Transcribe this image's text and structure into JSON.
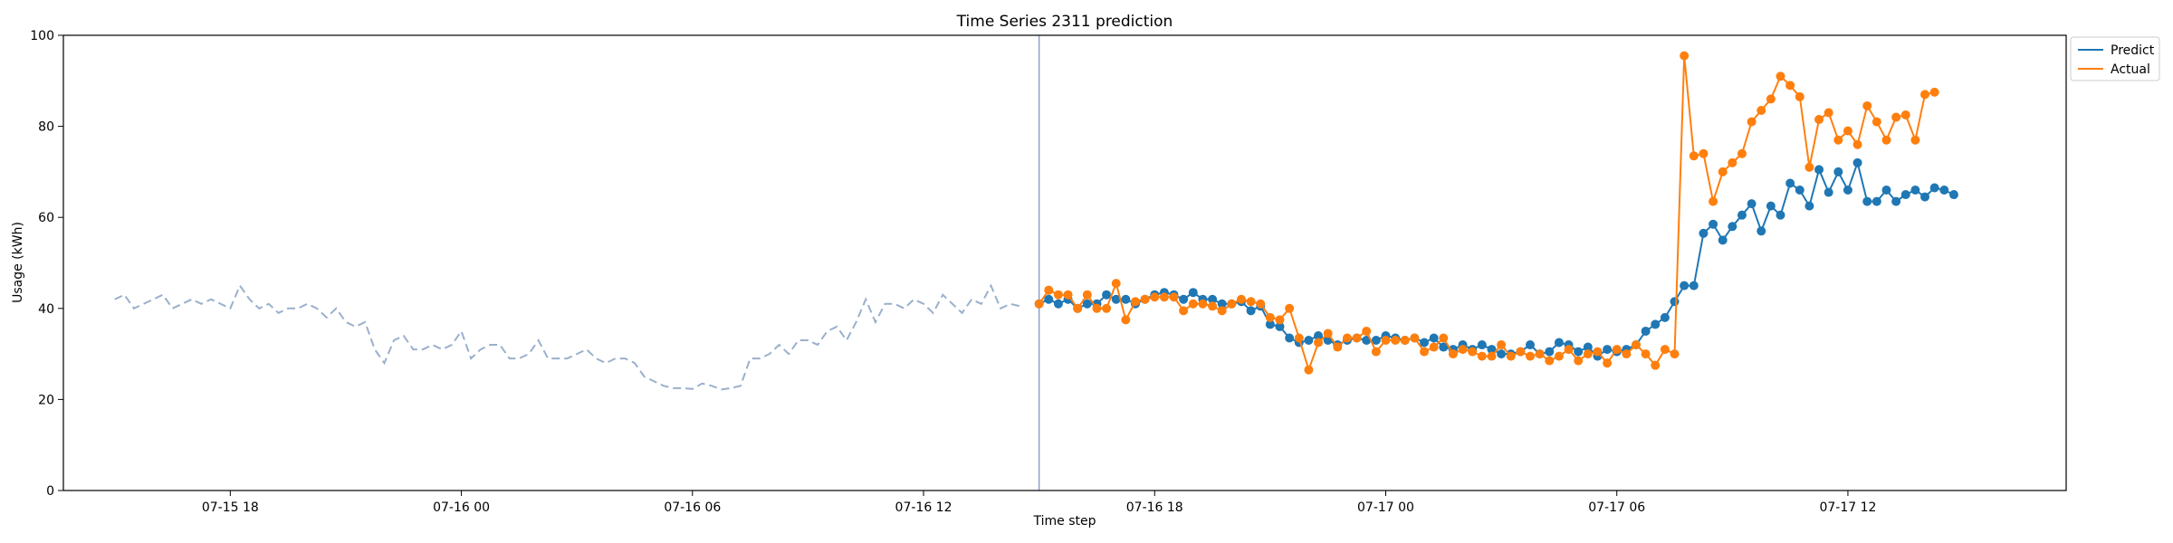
{
  "chart_data": {
    "type": "line",
    "title": "Time Series 2311 prediction",
    "xlabel": "Time step",
    "ylabel": "Usage (kWh)",
    "ylim": [
      0,
      100
    ],
    "yticks": [
      0,
      20,
      40,
      60,
      80,
      100
    ],
    "xlim": [
      "2024-07-15 13:40",
      "2024-07-17 17:40"
    ],
    "xticks": [
      {
        "time": "2024-07-15 18:00",
        "label": "07-15 18"
      },
      {
        "time": "2024-07-16 00:00",
        "label": "07-16 00"
      },
      {
        "time": "2024-07-16 06:00",
        "label": "07-16 06"
      },
      {
        "time": "2024-07-16 12:00",
        "label": "07-16 12"
      },
      {
        "time": "2024-07-16 18:00",
        "label": "07-16 18"
      },
      {
        "time": "2024-07-17 00:00",
        "label": "07-17 00"
      },
      {
        "time": "2024-07-17 06:00",
        "label": "07-17 06"
      },
      {
        "time": "2024-07-17 12:00",
        "label": "07-17 12"
      }
    ],
    "step_minutes": 15,
    "history_start": "2024-07-15 15:00",
    "forecast_start": "2024-07-16 15:00",
    "forecast_line_color": "#8da0cb",
    "grid": false,
    "legend_position": "top-right, outside plot",
    "history": {
      "color": "#9ab0cc",
      "style": "dashed",
      "values": [
        42,
        43,
        40,
        41,
        42,
        43,
        40,
        41,
        42,
        41,
        42,
        41,
        40,
        45,
        42,
        40,
        41,
        39,
        40,
        40,
        41,
        40,
        38,
        40,
        37,
        36,
        37,
        31,
        28,
        33,
        34,
        31,
        31,
        32,
        31,
        32,
        35,
        29,
        31,
        32,
        32,
        29,
        29,
        30,
        33,
        29,
        29,
        29,
        30,
        31,
        29,
        28,
        29,
        29,
        28,
        25,
        24,
        23,
        22.5,
        22.5,
        22.3,
        23.5,
        23,
        22.2,
        22.5,
        23,
        29,
        29,
        30,
        32,
        30,
        33,
        33,
        32,
        35,
        36,
        33,
        37,
        42,
        37,
        41,
        41,
        40,
        42,
        41,
        39,
        43,
        41,
        39,
        42,
        41,
        45,
        40,
        41,
        40.5
      ]
    },
    "series": [
      {
        "name": "Predict",
        "color": "#1f77b4",
        "values": [
          41,
          42,
          41,
          42,
          40,
          41,
          41,
          43,
          42,
          42,
          41,
          42,
          43,
          43.5,
          43,
          42,
          43.5,
          42,
          42,
          41,
          41,
          41.5,
          39.5,
          40.5,
          36.5,
          36,
          33.5,
          32.5,
          33,
          34,
          33,
          32,
          33,
          33.5,
          33,
          33,
          34,
          33.5,
          33,
          33.5,
          32.5,
          33.5,
          31.5,
          31,
          32,
          31,
          32,
          31,
          30,
          30,
          30.5,
          32,
          30,
          30.5,
          32.5,
          32,
          30.5,
          31.5,
          29.5,
          31,
          30.5,
          31,
          32,
          35,
          36.5,
          38,
          41.5,
          45,
          45,
          56.5,
          58.5,
          55,
          58,
          60.5,
          63,
          57,
          62.5,
          60.5,
          67.5,
          66,
          62.5,
          70.5,
          65.5,
          70,
          66,
          72,
          63.5,
          63.5,
          66,
          63.5,
          65,
          66,
          64.5,
          66.5,
          66,
          65
        ]
      },
      {
        "name": "Actual",
        "color": "#ff7f0e",
        "values": [
          41,
          44,
          43,
          43,
          40,
          43,
          40,
          40,
          45.5,
          37.5,
          41.5,
          42,
          42.5,
          42.5,
          42.5,
          39.5,
          41,
          41,
          40.5,
          39.5,
          41,
          42,
          41.5,
          41,
          38,
          37.5,
          40,
          33.5,
          26.5,
          32.5,
          34.5,
          31.5,
          33.5,
          33.5,
          35,
          30.5,
          33,
          33,
          33,
          33.5,
          30.5,
          31.5,
          33.5,
          30,
          31,
          30.5,
          29.5,
          29.5,
          32,
          29.5,
          30.5,
          29.5,
          30,
          28.5,
          29.5,
          31,
          28.5,
          30,
          30.5,
          28,
          31,
          30,
          32,
          30,
          27.5,
          31,
          30,
          95.5,
          73.5,
          74,
          63.5,
          70,
          72,
          74,
          81,
          83.5,
          86,
          91,
          89,
          86.5,
          71,
          81.5,
          83,
          77,
          79,
          76,
          84.5,
          81,
          77,
          82,
          82.5,
          77,
          87,
          87.5
        ]
      }
    ]
  }
}
